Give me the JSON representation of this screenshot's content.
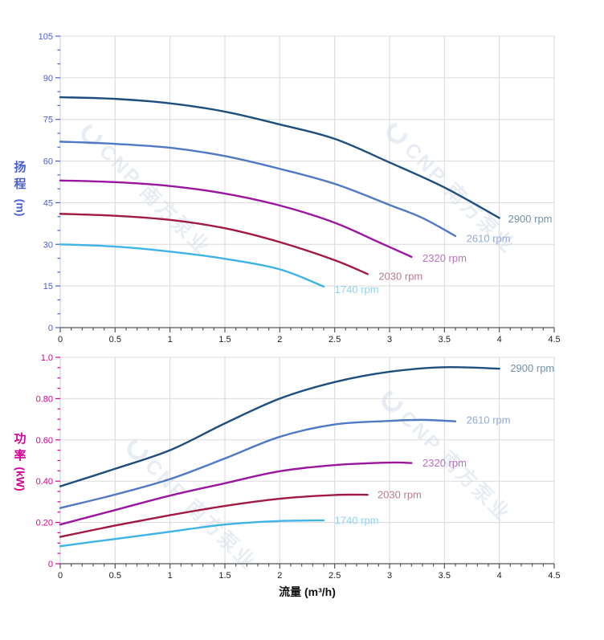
{
  "watermark": {
    "text": "CNP 南方泵业"
  },
  "x_axis_title": "流量 (m³/h)",
  "head_axis_title": {
    "char1": "扬",
    "char2": "程",
    "unit": "(m)"
  },
  "power_axis_title": {
    "char1": "功",
    "char2": "率",
    "unit": "(kW)"
  },
  "colors": {
    "grid": "#d9d9d9",
    "y_axis_line": "#c4cbd6",
    "x_axis_line": "#555555",
    "x_tick_label": "#222222",
    "head_axis": "#4a5fd0",
    "power_axis": "#d40095",
    "watermark": "#7b98c9"
  },
  "chart_data": [
    {
      "type": "line",
      "name": "head-vs-flow",
      "ylabel": "扬程 (m)",
      "xlabel": "流量 (m³/h)",
      "x_range": [
        0,
        4.5
      ],
      "x_major": 0.5,
      "x_minor": 0.1,
      "y_range": [
        0,
        105
      ],
      "y_major": 15,
      "y_minor": 5,
      "x_tick_labels": [
        "0",
        "0.5",
        "1",
        "1.5",
        "2",
        "2.5",
        "3",
        "3.5",
        "4",
        "4.5"
      ],
      "y_tick_labels": [
        "0",
        "15",
        "30",
        "45",
        "60",
        "75",
        "90",
        "105"
      ],
      "axis_color": "#4a5fd0",
      "grid": true,
      "legend_position": "end-of-curve",
      "series": [
        {
          "name": "2900 rpm",
          "color": "#1d4f7e",
          "label_color": "#7191ad",
          "label_at": [
            4.08,
            39
          ],
          "points": [
            [
              0,
              83
            ],
            [
              0.5,
              82.4
            ],
            [
              1,
              80.8
            ],
            [
              1.5,
              77.8
            ],
            [
              2,
              73.2
            ],
            [
              2.5,
              68
            ],
            [
              3,
              59.5
            ],
            [
              3.5,
              50.5
            ],
            [
              4,
              39.5
            ]
          ]
        },
        {
          "name": "2610 rpm",
          "color": "#4f79c5",
          "label_color": "#94a9d6",
          "label_at": [
            3.7,
            32
          ],
          "points": [
            [
              0,
              67
            ],
            [
              0.5,
              66.2
            ],
            [
              1,
              64.8
            ],
            [
              1.5,
              61.8
            ],
            [
              2,
              57.2
            ],
            [
              2.5,
              51.8
            ],
            [
              3,
              44.2
            ],
            [
              3.3,
              39.5
            ],
            [
              3.6,
              33
            ]
          ]
        },
        {
          "name": "2320 rpm",
          "color": "#9a15a0",
          "label_color": "#b873bd",
          "label_at": [
            3.3,
            24.9
          ],
          "points": [
            [
              0,
              53
            ],
            [
              0.5,
              52.4
            ],
            [
              1,
              51
            ],
            [
              1.5,
              48.3
            ],
            [
              2,
              44
            ],
            [
              2.5,
              37.8
            ],
            [
              2.9,
              30.8
            ],
            [
              3.2,
              25.5
            ]
          ]
        },
        {
          "name": "2030 rpm",
          "color": "#a21a42",
          "label_color": "#b97d8d",
          "label_at": [
            2.9,
            18.4
          ],
          "points": [
            [
              0,
              41
            ],
            [
              0.5,
              40.3
            ],
            [
              1,
              38.8
            ],
            [
              1.5,
              35.8
            ],
            [
              2,
              30.8
            ],
            [
              2.5,
              24.3
            ],
            [
              2.8,
              19.3
            ]
          ]
        },
        {
          "name": "1740 rpm",
          "color": "#3eb3e8",
          "label_color": "#8fd3f4",
          "label_at": [
            2.5,
            13.6
          ],
          "points": [
            [
              0,
              30
            ],
            [
              0.5,
              29.2
            ],
            [
              1,
              27.4
            ],
            [
              1.5,
              24.8
            ],
            [
              2,
              21
            ],
            [
              2.4,
              14.8
            ]
          ]
        }
      ]
    },
    {
      "type": "line",
      "name": "power-vs-flow",
      "ylabel": "功率 (kW)",
      "xlabel": "流量 (m³/h)",
      "x_range": [
        0,
        4.5
      ],
      "x_major": 0.5,
      "x_minor": 0.1,
      "y_range": [
        0,
        1.0
      ],
      "y_major": 0.2,
      "y_minor": 0.05,
      "x_tick_labels": [
        "0",
        "0.5",
        "1",
        "1.5",
        "2",
        "2.5",
        "3",
        "3.5",
        "4",
        "4.5"
      ],
      "y_tick_labels": [
        "0",
        "0.20",
        "0.40",
        "0.60",
        "0.80",
        "1.0"
      ],
      "axis_color": "#d40095",
      "grid": true,
      "legend_position": "end-of-curve",
      "series": [
        {
          "name": "2900 rpm",
          "color": "#1d4f7e",
          "label_color": "#7191ad",
          "label_at": [
            4.1,
            0.945
          ],
          "points": [
            [
              0,
              0.375
            ],
            [
              0.5,
              0.46
            ],
            [
              1,
              0.55
            ],
            [
              1.5,
              0.68
            ],
            [
              2,
              0.8
            ],
            [
              2.5,
              0.88
            ],
            [
              3,
              0.93
            ],
            [
              3.5,
              0.952
            ],
            [
              4,
              0.945
            ]
          ]
        },
        {
          "name": "2610 rpm",
          "color": "#4f79c5",
          "label_color": "#94a9d6",
          "label_at": [
            3.7,
            0.695
          ],
          "points": [
            [
              0,
              0.27
            ],
            [
              0.5,
              0.335
            ],
            [
              1,
              0.41
            ],
            [
              1.5,
              0.51
            ],
            [
              2,
              0.615
            ],
            [
              2.5,
              0.675
            ],
            [
              3,
              0.692
            ],
            [
              3.3,
              0.697
            ],
            [
              3.6,
              0.69
            ]
          ]
        },
        {
          "name": "2320 rpm",
          "color": "#9a15a0",
          "label_color": "#b873bd",
          "label_at": [
            3.3,
            0.486
          ],
          "points": [
            [
              0,
              0.19
            ],
            [
              0.5,
              0.26
            ],
            [
              1,
              0.33
            ],
            [
              1.5,
              0.39
            ],
            [
              2,
              0.448
            ],
            [
              2.5,
              0.478
            ],
            [
              3,
              0.49
            ],
            [
              3.2,
              0.488
            ]
          ]
        },
        {
          "name": "2030 rpm",
          "color": "#a21a42",
          "label_color": "#b97d8d",
          "label_at": [
            2.89,
            0.332
          ],
          "points": [
            [
              0,
              0.13
            ],
            [
              0.5,
              0.185
            ],
            [
              1,
              0.235
            ],
            [
              1.5,
              0.28
            ],
            [
              2,
              0.315
            ],
            [
              2.5,
              0.333
            ],
            [
              2.8,
              0.334
            ]
          ]
        },
        {
          "name": "1740 rpm",
          "color": "#3eb3e8",
          "label_color": "#8fd3f4",
          "label_at": [
            2.5,
            0.208
          ],
          "points": [
            [
              0,
              0.085
            ],
            [
              0.5,
              0.12
            ],
            [
              1,
              0.155
            ],
            [
              1.5,
              0.19
            ],
            [
              2,
              0.207
            ],
            [
              2.4,
              0.21
            ]
          ]
        }
      ]
    }
  ]
}
